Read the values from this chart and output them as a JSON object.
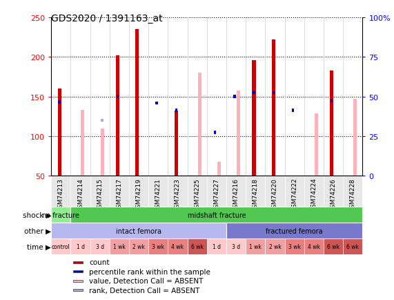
{
  "title": "GDS2020 / 1391163_at",
  "samples": [
    "GSM74213",
    "GSM74214",
    "GSM74215",
    "GSM74217",
    "GSM74219",
    "GSM74221",
    "GSM74223",
    "GSM74225",
    "GSM74227",
    "GSM74216",
    "GSM74218",
    "GSM74220",
    "GSM74222",
    "GSM74224",
    "GSM74226",
    "GSM74228"
  ],
  "red_bars": [
    160,
    0,
    0,
    202,
    235,
    0,
    132,
    0,
    0,
    0,
    196,
    222,
    0,
    0,
    183,
    0
  ],
  "pink_bars": [
    0,
    133,
    110,
    0,
    0,
    0,
    0,
    180,
    68,
    158,
    0,
    0,
    0,
    129,
    0,
    147
  ],
  "blue_squares_value": [
    143,
    0,
    0,
    150,
    0,
    142,
    133,
    0,
    105,
    150,
    155,
    155,
    133,
    0,
    145,
    0
  ],
  "blue_squares_absent": [
    0,
    0,
    120,
    0,
    0,
    0,
    0,
    0,
    0,
    0,
    0,
    0,
    0,
    0,
    0,
    0
  ],
  "ylim_min": 50,
  "ylim_max": 250,
  "yticks": [
    50,
    100,
    150,
    200,
    250
  ],
  "yright_ticks_data": [
    0,
    25,
    50,
    75,
    100
  ],
  "yright_labels": [
    "0",
    "25",
    "50",
    "75",
    "100%"
  ],
  "shock_regions": [
    {
      "text": "no fracture",
      "start": 0,
      "end": 1,
      "color": "#90ee90"
    },
    {
      "text": "midshaft fracture",
      "start": 1,
      "end": 16,
      "color": "#52c752"
    }
  ],
  "other_regions": [
    {
      "text": "intact femora",
      "start": 0,
      "end": 9,
      "color": "#b8b8f0"
    },
    {
      "text": "fractured femora",
      "start": 9,
      "end": 16,
      "color": "#7878cc"
    }
  ],
  "time_labels_full": [
    "control",
    "1 d",
    "3 d",
    "1 wk",
    "2 wk",
    "3 wk",
    "4 wk",
    "6 wk",
    "1 d",
    "3 d",
    "1 wk",
    "2 wk",
    "3 wk",
    "4 wk",
    "6 wk",
    "6 wk"
  ],
  "time_colors_full": [
    "#fccaca",
    "#fccaca",
    "#fccaca",
    "#f0a0a0",
    "#f0a0a0",
    "#e88080",
    "#e88080",
    "#cc5555",
    "#fccaca",
    "#fccaca",
    "#f0a0a0",
    "#f0a0a0",
    "#e88080",
    "#e88080",
    "#cc5555",
    "#cc5555"
  ],
  "red_color": "#cc0000",
  "pink_color": "#ffb0b8",
  "blue_color": "#0000cc",
  "light_blue_color": "#aaaadd",
  "legend_items": [
    {
      "color": "#cc0000",
      "label": "count"
    },
    {
      "color": "#0000cc",
      "label": "percentile rank within the sample"
    },
    {
      "color": "#ffb0b8",
      "label": "value, Detection Call = ABSENT"
    },
    {
      "color": "#aaaadd",
      "label": "rank, Detection Call = ABSENT"
    }
  ]
}
